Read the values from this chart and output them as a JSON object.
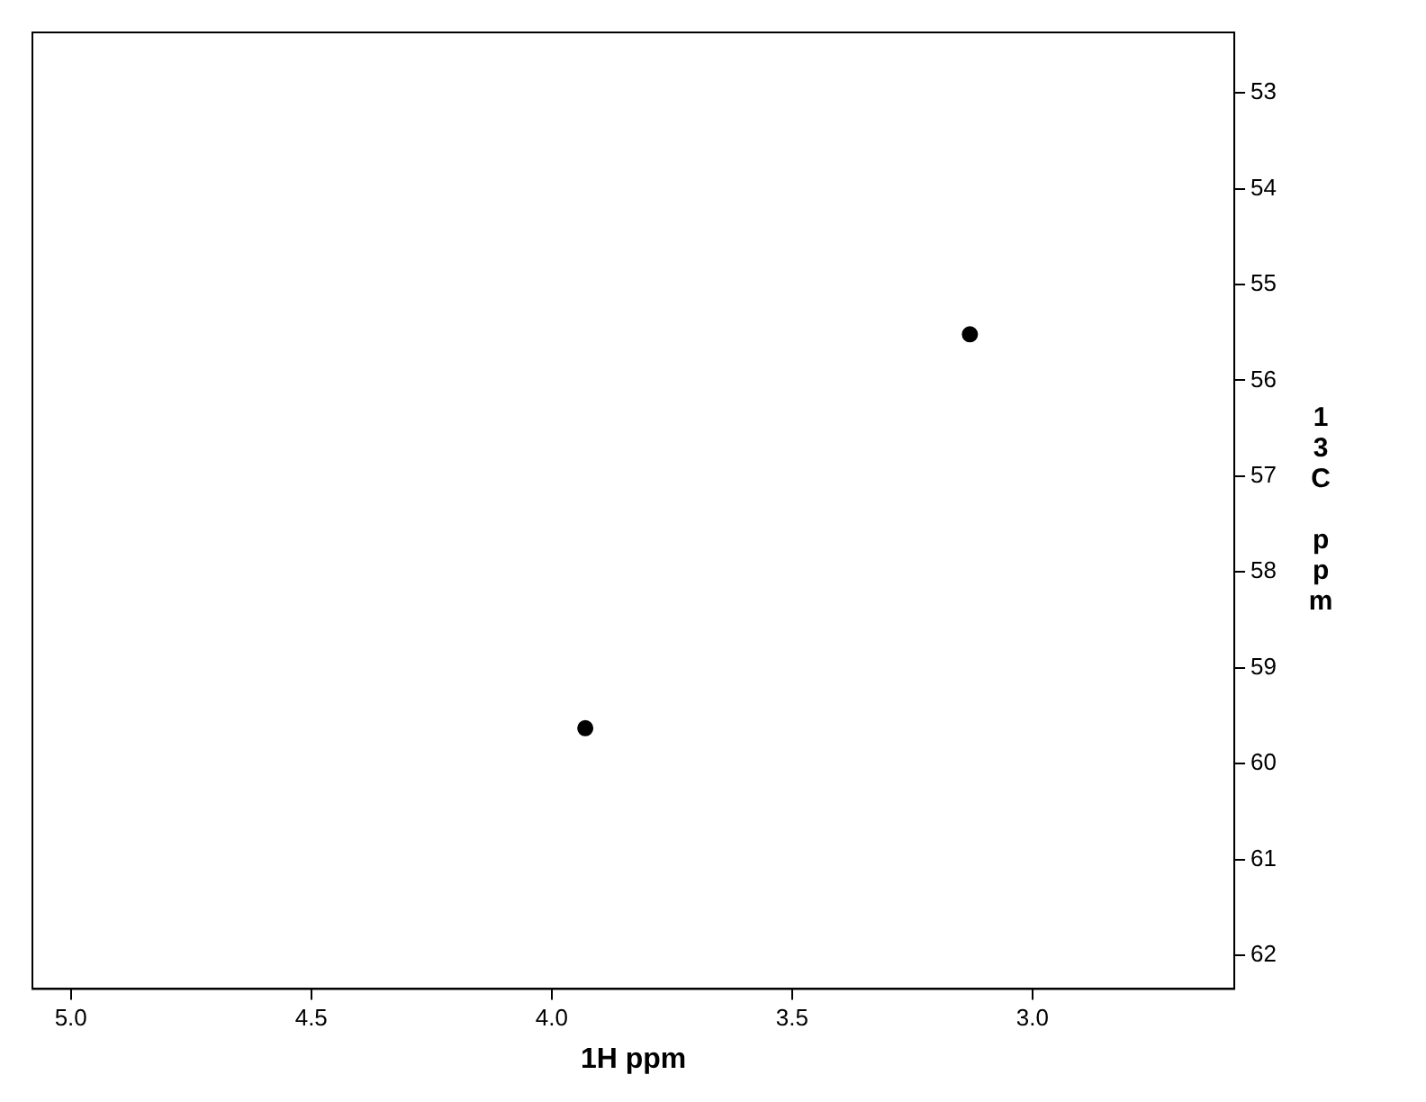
{
  "chart_data": {
    "type": "scatter",
    "xlabel": "1H ppm",
    "ylabel": "13C ppm",
    "x": [
      3.93,
      3.13
    ],
    "series": [
      {
        "color": "#000000",
        "values": [
          59.63,
          55.52
        ]
      }
    ],
    "xlim": [
      5.08,
      2.58
    ],
    "xticks": [
      {
        "value": 5.0,
        "label": "5.0"
      },
      {
        "value": 4.5,
        "label": "4.5"
      },
      {
        "value": 4.0,
        "label": "4.0"
      },
      {
        "value": 3.5,
        "label": "3.5"
      },
      {
        "value": 3.0,
        "label": "3.0"
      }
    ],
    "ylim": [
      62.35,
      52.37
    ],
    "yticks": [
      53,
      54,
      55,
      56,
      57,
      58,
      59,
      60,
      61,
      62
    ],
    "grid": false,
    "legend": false,
    "marker": "circle"
  }
}
